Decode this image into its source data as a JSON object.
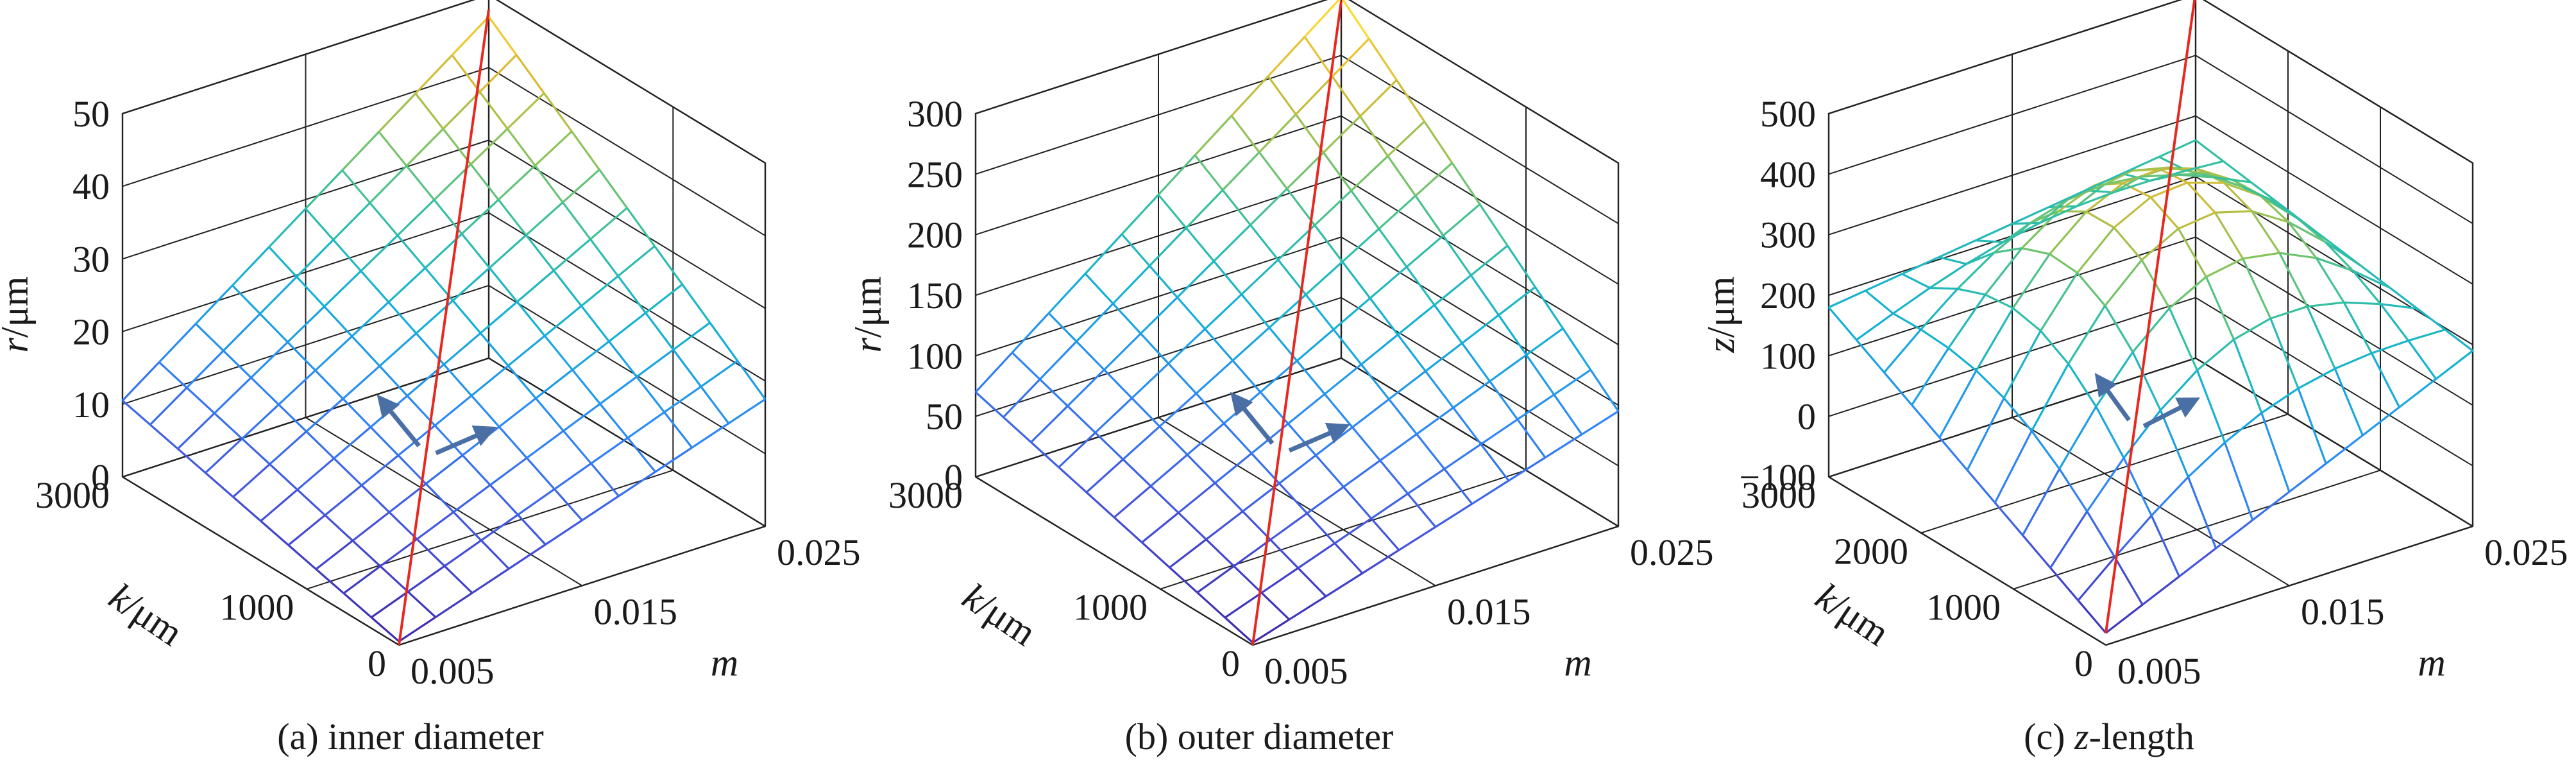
{
  "figure": {
    "panels": [
      {
        "caption": "(a) inner diameter",
        "caption_prefix": "(a) ",
        "caption_italic": "",
        "caption_suffix": "inner diameter"
      },
      {
        "caption": "(b) outer diameter",
        "caption_prefix": "(b) ",
        "caption_italic": "",
        "caption_suffix": "outer diameter"
      },
      {
        "caption": "(c) z-length",
        "caption_prefix": "(c) ",
        "caption_italic": "z",
        "caption_suffix": "-length"
      }
    ]
  },
  "chart_data": [
    {
      "type": "surface",
      "caption": "(a) inner diameter",
      "zlabel_var": "r",
      "zlabel_unit": "/μm",
      "xlabel": "m",
      "ylabel_var": "k",
      "ylabel_unit": "/μm",
      "x_ticks": [
        "0.005",
        "0.015",
        "0.025"
      ],
      "y_ticks": [
        "0",
        "1000",
        "3000"
      ],
      "z_ticks": [
        "0",
        "10",
        "20",
        "30",
        "40",
        "50"
      ],
      "xlim": [
        0.005,
        0.025
      ],
      "ylim": [
        0,
        3000
      ],
      "zlim": [
        0,
        50
      ],
      "grid": true,
      "colormap": "parula",
      "surface_model": "planar",
      "surface_corners": {
        "m_min_k_min": 0.5,
        "m_max_k_min": 17.5,
        "m_min_k_max": 10.5,
        "m_max_k_max": 47.0
      },
      "surface_resolution": [
        11,
        11
      ],
      "red_line": {
        "from": [
          0.005,
          0,
          0
        ],
        "to": [
          0.025,
          3000,
          48
        ]
      },
      "arrows": [
        {
          "direction": "k",
          "color": "#4a6fa5"
        },
        {
          "direction": "m",
          "color": "#4a6fa5"
        }
      ]
    },
    {
      "type": "surface",
      "caption": "(b) outer diameter",
      "zlabel_var": "r",
      "zlabel_unit": "/μm",
      "xlabel": "m",
      "ylabel_var": "k",
      "ylabel_unit": "/μm",
      "x_ticks": [
        "0.005",
        "0.015",
        "0.025"
      ],
      "y_ticks": [
        "0",
        "1000",
        "3000"
      ],
      "z_ticks": [
        "0",
        "50",
        "100",
        "150",
        "200",
        "250",
        "300"
      ],
      "xlim": [
        0.005,
        0.025
      ],
      "ylim": [
        0,
        3000
      ],
      "zlim": [
        0,
        300
      ],
      "grid": true,
      "colormap": "parula",
      "surface_model": "planar",
      "surface_corners": {
        "m_min_k_min": 2,
        "m_max_k_min": 95,
        "m_min_k_max": 70,
        "m_max_k_max": 298
      },
      "surface_resolution": [
        11,
        11
      ],
      "red_line": {
        "from": [
          0.005,
          0,
          0
        ],
        "to": [
          0.025,
          3000,
          295
        ]
      },
      "arrows": [
        {
          "direction": "k",
          "color": "#4a6fa5"
        },
        {
          "direction": "m",
          "color": "#4a6fa5"
        }
      ]
    },
    {
      "type": "surface",
      "caption": "(c) z-length",
      "zlabel_var": "z",
      "zlabel_unit": "/μm",
      "xlabel": "m",
      "ylabel_var": "k",
      "ylabel_unit": "/μm",
      "x_ticks": [
        "0.005",
        "0.015",
        "0.025"
      ],
      "y_ticks": [
        "0",
        "1000",
        "2000",
        "3000"
      ],
      "z_ticks": [
        "−100",
        "0",
        "100",
        "200",
        "300",
        "400",
        "500"
      ],
      "xlim": [
        0.005,
        0.025
      ],
      "ylim": [
        0,
        3000
      ],
      "zlim": [
        -100,
        500
      ],
      "grid": true,
      "colormap": "parula",
      "surface_model": "saddle",
      "surface_corners": {
        "m_min_k_min": -80,
        "m_max_k_min": 190,
        "m_min_k_max": 180,
        "m_max_k_max": 260
      },
      "surface_peak": 500,
      "surface_resolution": [
        11,
        11
      ],
      "red_line": {
        "from": [
          0.005,
          0,
          -80
        ],
        "to": [
          0.025,
          3000,
          505
        ]
      },
      "arrows": [
        {
          "direction": "k",
          "color": "#4a6fa5"
        },
        {
          "direction": "m",
          "color": "#4a6fa5"
        }
      ]
    }
  ]
}
